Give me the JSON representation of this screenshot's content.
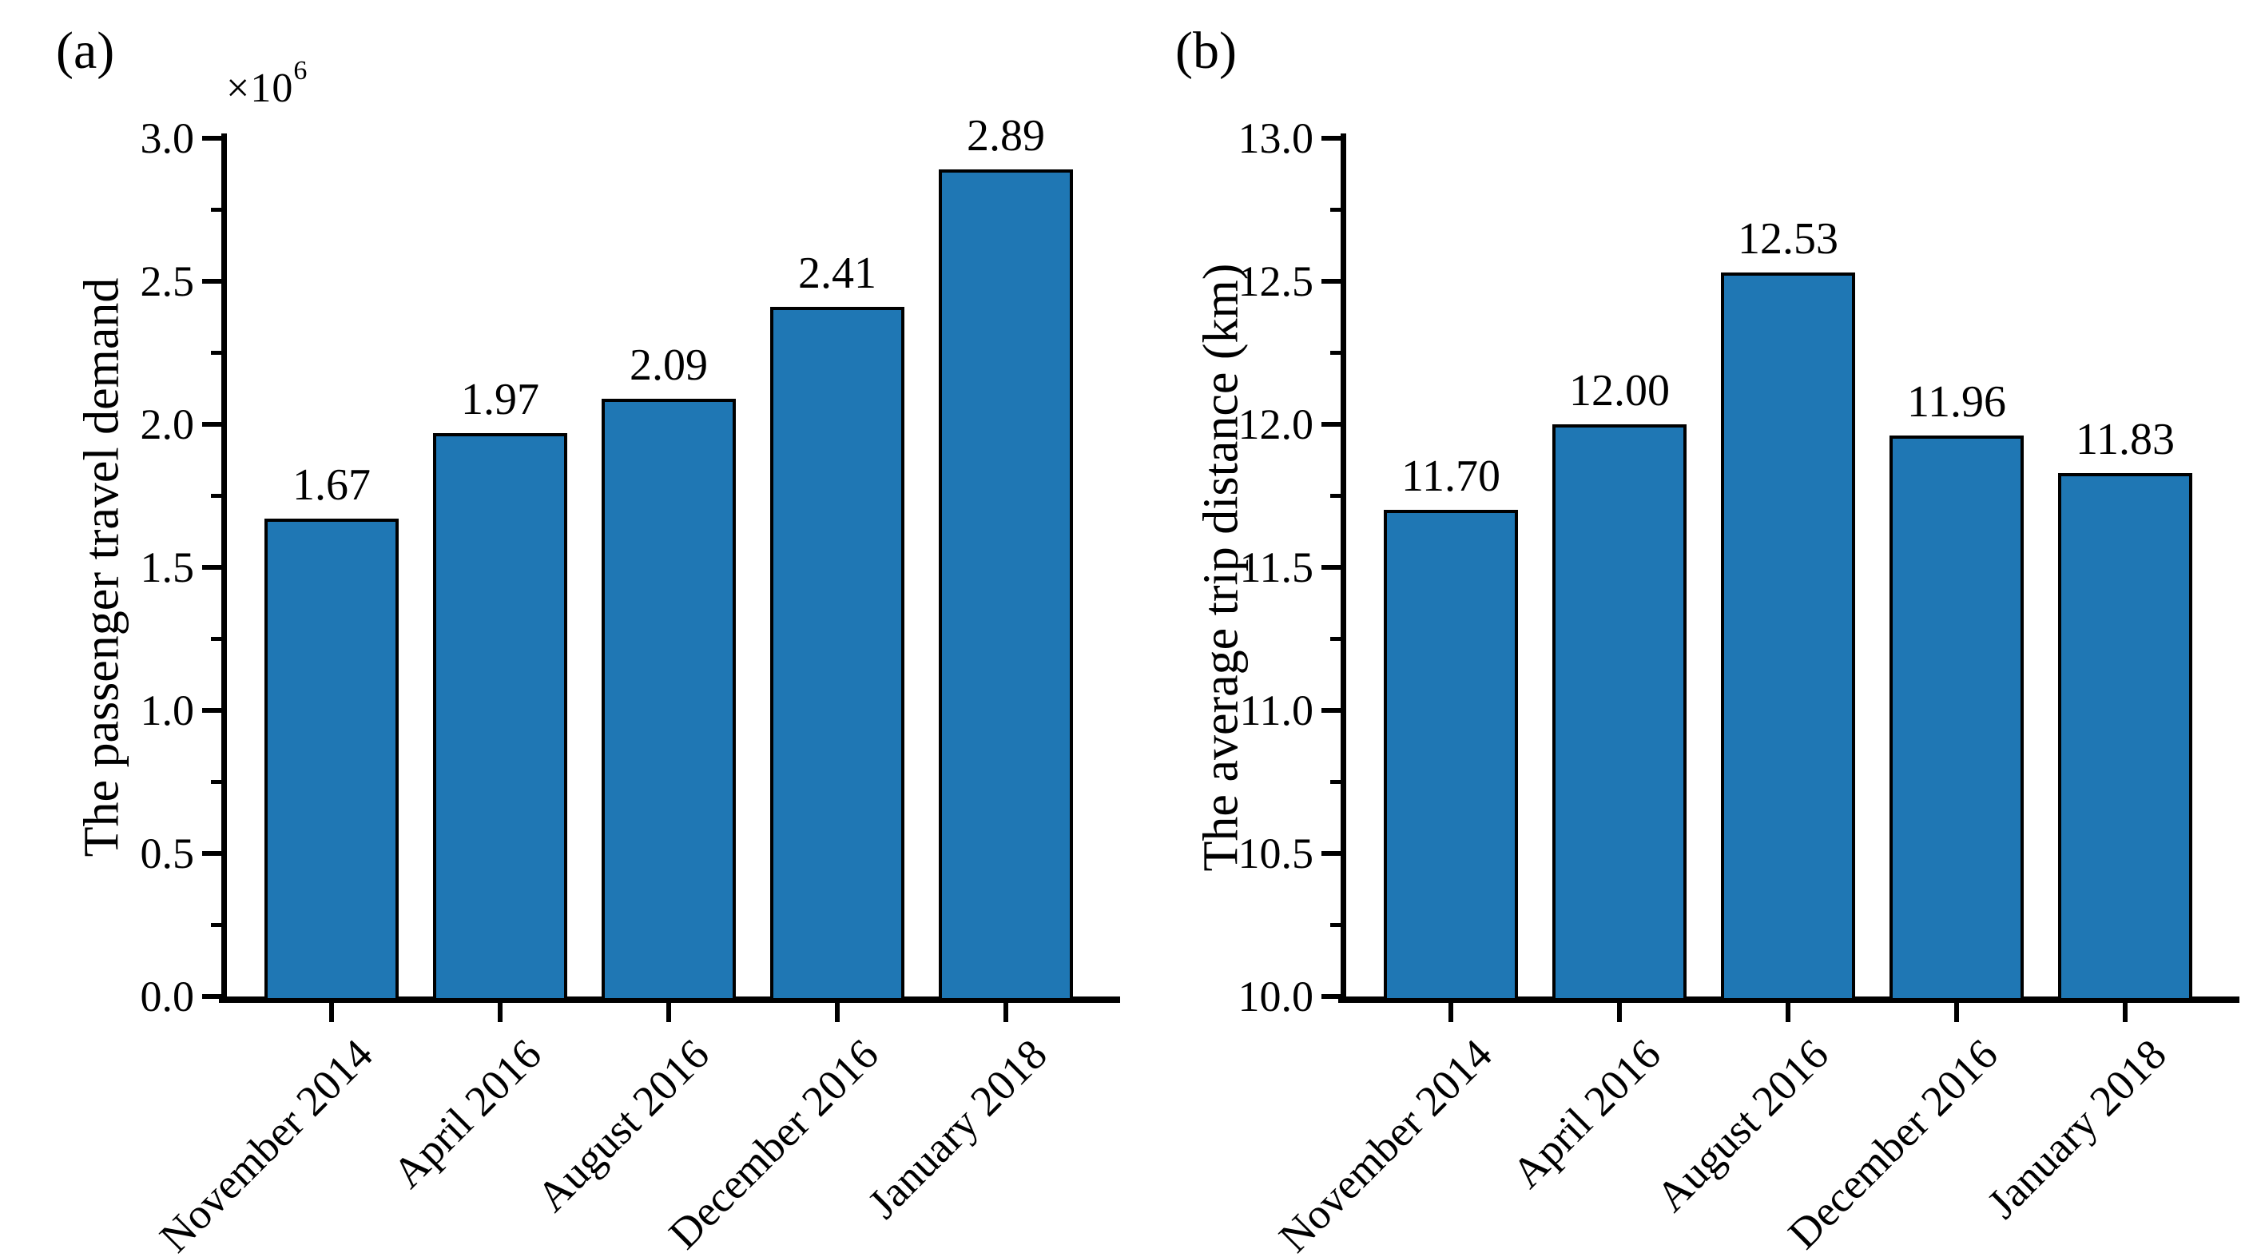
{
  "figure_type": "two-panel bar figure",
  "colors": {
    "bar_fill": "#1f77b4",
    "bar_edge": "#000000",
    "axis": "#000000",
    "background": "#ffffff"
  },
  "chart_data": [
    {
      "type": "bar",
      "panel_label": "(a)",
      "title": "",
      "xlabel": "",
      "ylabel": "The passenger travel demand",
      "y_offset_base": "×10",
      "y_offset_exp": "6",
      "categories": [
        "November 2014",
        "April 2016",
        "August 2016",
        "December 2016",
        "January 2018"
      ],
      "values": [
        1.67,
        1.97,
        2.09,
        2.41,
        2.89
      ],
      "data_labels": [
        "1.67",
        "1.97",
        "2.09",
        "2.41",
        "2.89"
      ],
      "ylim": [
        0.0,
        3.0
      ],
      "ytick_values": [
        0.0,
        0.5,
        1.0,
        1.5,
        2.0,
        2.5,
        3.0
      ],
      "ytick_labels": [
        "0.0",
        "0.5",
        "1.0",
        "1.5",
        "2.0",
        "2.5",
        "3.0"
      ],
      "minor_tick_step": 0.25,
      "grid": false,
      "legend": false,
      "xtick_rotation_deg": 45,
      "bar_color": "#1f77b4",
      "bar_edge_color": "#000000"
    },
    {
      "type": "bar",
      "panel_label": "(b)",
      "title": "",
      "xlabel": "",
      "ylabel": "The average trip distance (km)",
      "y_offset_base": "",
      "y_offset_exp": "",
      "categories": [
        "November 2014",
        "April 2016",
        "August 2016",
        "December 2016",
        "January 2018"
      ],
      "values": [
        11.7,
        12.0,
        12.53,
        11.96,
        11.83
      ],
      "data_labels": [
        "11.70",
        "12.00",
        "12.53",
        "11.96",
        "11.83"
      ],
      "ylim": [
        10.0,
        13.0
      ],
      "ytick_values": [
        10.0,
        10.5,
        11.0,
        11.5,
        12.0,
        12.5,
        13.0
      ],
      "ytick_labels": [
        "10.0",
        "10.5",
        "11.0",
        "11.5",
        "12.0",
        "12.5",
        "13.0"
      ],
      "minor_tick_step": 0.25,
      "grid": false,
      "legend": false,
      "xtick_rotation_deg": 45,
      "bar_color": "#1f77b4",
      "bar_edge_color": "#000000"
    }
  ]
}
